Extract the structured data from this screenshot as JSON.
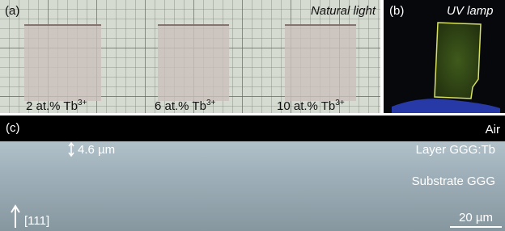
{
  "panel_a": {
    "label": "(a)",
    "condition": "Natural light",
    "samples": [
      {
        "label": "2 at.% Tb",
        "superscript": "3+"
      },
      {
        "label": "6 at.% Tb",
        "superscript": "3+"
      },
      {
        "label": "10 at.% Tb",
        "superscript": "3+"
      }
    ]
  },
  "panel_b": {
    "label": "(b)",
    "condition": "UV lamp"
  },
  "panel_c": {
    "label": "(c)",
    "top_medium": "Air",
    "thickness": "4.6 µm",
    "layer": "Layer GGG:Tb",
    "substrate": "Substrate GGG",
    "direction": "[111]",
    "scale_bar": "20 µm"
  }
}
